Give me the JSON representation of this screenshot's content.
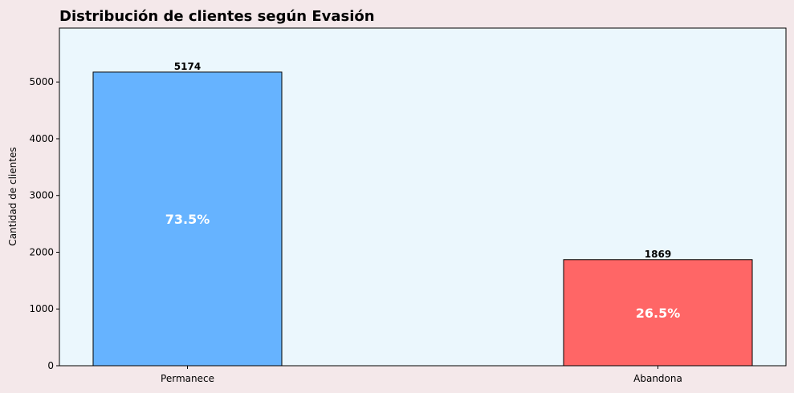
{
  "chart_data": {
    "type": "bar",
    "title": "Distribución de clientes según Evasión",
    "xlabel": "",
    "ylabel": "Cantidad de clientes",
    "categories": [
      "Permanece",
      "Abandona"
    ],
    "values": [
      5174,
      1869
    ],
    "percent_labels": [
      "73.5%",
      "26.5%"
    ],
    "value_labels": [
      "5174",
      "1869"
    ],
    "colors": [
      "#66b3ff",
      "#ff6666"
    ],
    "edge_color": "#000000",
    "plot_background": "#ebf7fd",
    "figure_background": "#f4e8ea",
    "ylim": [
      0,
      5950
    ],
    "yticks": [
      0,
      1000,
      2000,
      3000,
      4000,
      5000
    ],
    "ytick_labels": [
      "0",
      "1000",
      "2000",
      "3000",
      "4000",
      "5000"
    ],
    "grid": false,
    "legend": "none"
  }
}
